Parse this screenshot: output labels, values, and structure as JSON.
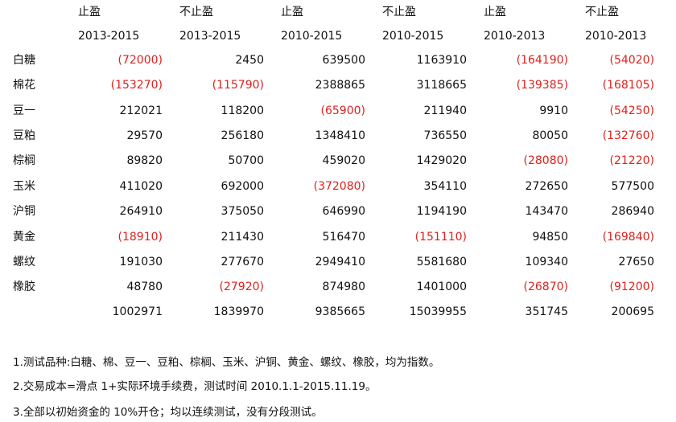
{
  "header_row1": [
    "止盈",
    "不止盈",
    "止盈",
    "不止盈",
    "止盈",
    "不止盈"
  ],
  "header_row2": [
    "2013-2015",
    "2013-2015",
    "2010-2015",
    "2010-2015",
    "2010-2013",
    "2010-2013"
  ],
  "rows": [
    {
      "label": "白糖",
      "values": [
        "(72000)",
        "2450",
        "639500",
        "1163910",
        "(164190)",
        "(54020)"
      ],
      "negative": [
        true,
        false,
        false,
        false,
        true,
        true
      ]
    },
    {
      "label": "棉花",
      "values": [
        "(153270)",
        "(115790)",
        "2388865",
        "3118665",
        "(139385)",
        "(168105)"
      ],
      "negative": [
        true,
        true,
        false,
        false,
        true,
        true
      ]
    },
    {
      "label": "豆一",
      "values": [
        "212021",
        "118200",
        "(65900)",
        "211940",
        "9910",
        "(54250)"
      ],
      "negative": [
        false,
        false,
        true,
        false,
        false,
        true
      ]
    },
    {
      "label": "豆粕",
      "values": [
        "29570",
        "256180",
        "1348410",
        "736550",
        "80050",
        "(132760)"
      ],
      "negative": [
        false,
        false,
        false,
        false,
        false,
        true
      ]
    },
    {
      "label": "棕榈",
      "values": [
        "89820",
        "50700",
        "459020",
        "1429020",
        "(28080)",
        "(21220)"
      ],
      "negative": [
        false,
        false,
        false,
        false,
        true,
        true
      ]
    },
    {
      "label": "玉米",
      "values": [
        "411020",
        "692000",
        "(372080)",
        "354110",
        "272650",
        "577500"
      ],
      "negative": [
        false,
        false,
        true,
        false,
        false,
        false
      ]
    },
    {
      "label": "沪铜",
      "values": [
        "264910",
        "375050",
        "646990",
        "1194190",
        "143470",
        "286940"
      ],
      "negative": [
        false,
        false,
        false,
        false,
        false,
        false
      ]
    },
    {
      "label": "黄金",
      "values": [
        "(18910)",
        "211430",
        "516470",
        "(151110)",
        "94850",
        "(169840)"
      ],
      "negative": [
        true,
        false,
        false,
        true,
        false,
        true
      ]
    },
    {
      "label": "螺纹",
      "values": [
        "191030",
        "277670",
        "2949410",
        "5581680",
        "109340",
        "27650"
      ],
      "negative": [
        false,
        false,
        false,
        false,
        false,
        false
      ]
    },
    {
      "label": "橡胶",
      "values": [
        "48780",
        "(27920)",
        "874980",
        "1401000",
        "(26870)",
        "(91200)"
      ],
      "negative": [
        false,
        true,
        false,
        false,
        true,
        true
      ]
    }
  ],
  "totals": [
    "1002971",
    "1839970",
    "9385665",
    "15039955",
    "351745",
    "200695"
  ],
  "notes": [
    "1.测试品种:白糖、棉、豆一、豆粕、棕榈、玉米、沪铜、黄金、螺纹、橡胶，均为指数。",
    "2.交易成本=滑点 1+实际环境手续费，测试时间 2010.1.1-2015.11.19。",
    "3.全部以初始资金的 10%开仓；均以连续测试，没有分段测试。"
  ],
  "colors": {
    "negative": "#e0201c",
    "text": "#111111",
    "background": "#ffffff"
  }
}
